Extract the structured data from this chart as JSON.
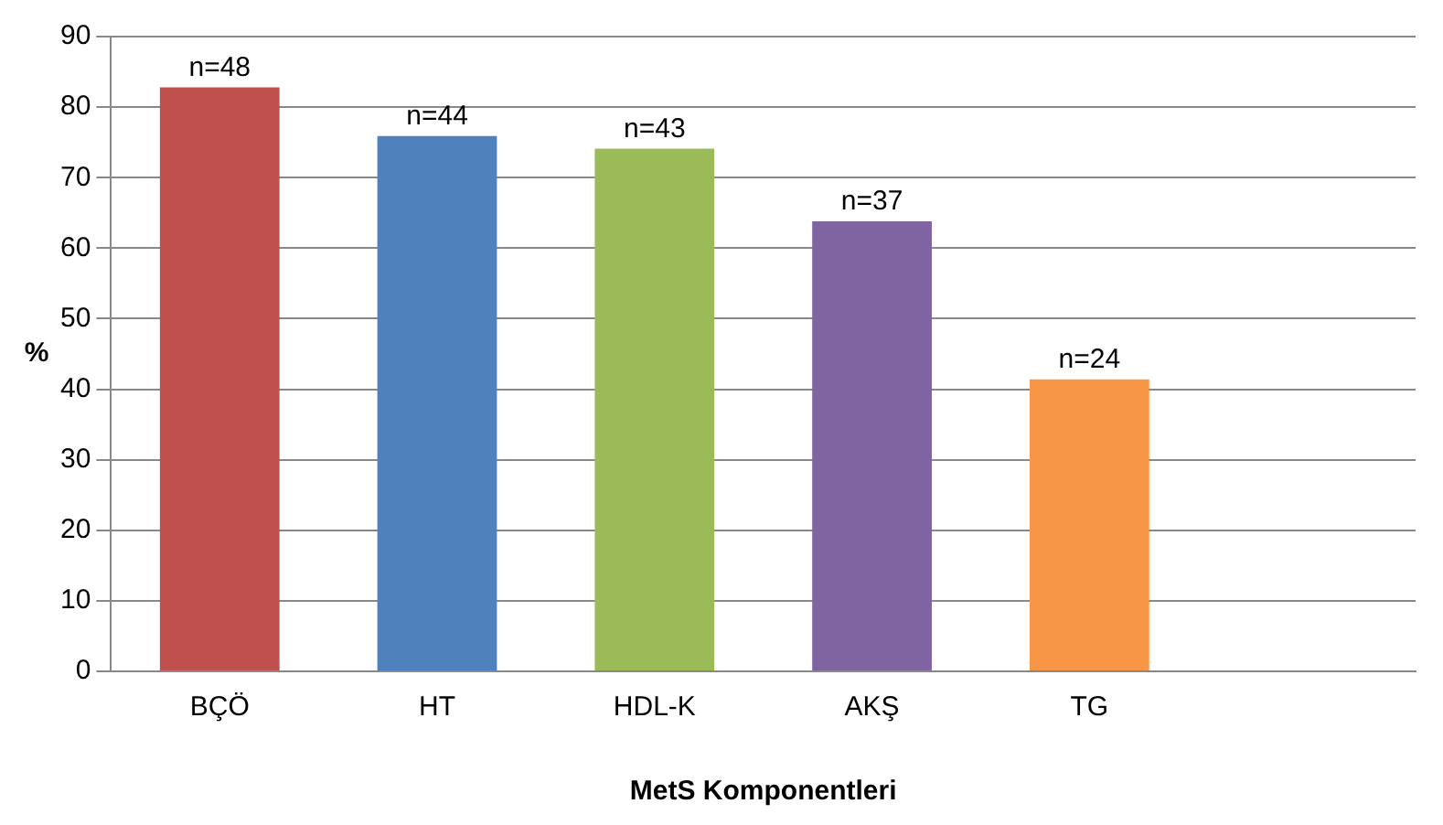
{
  "chart_data": {
    "type": "bar",
    "xlabel": "MetS Komponentleri",
    "ylabel": "%",
    "categories": [
      "BÇÖ",
      "HT",
      "HDL-K",
      "AKŞ",
      "TG",
      null
    ],
    "values": [
      82.8,
      75.9,
      74.1,
      63.8,
      41.4,
      null
    ],
    "colors": [
      "#c0504d",
      "#4f81bd",
      "#9bbb59",
      "#8064a2",
      "#f79646",
      "#888888"
    ],
    "annotations": [
      {
        "text": "n=48",
        "x": "BÇÖ",
        "y": 82.8
      },
      {
        "text": "n=44",
        "x": "HT",
        "y": 75.9
      },
      {
        "text": "n=43",
        "x": "HDL-K",
        "y": 74.1
      },
      {
        "text": "n=37",
        "x": "AKŞ",
        "y": 63.8
      },
      {
        "text": "n=24",
        "x": "TG",
        "y": 41.4
      }
    ],
    "ylim": [
      0,
      90
    ],
    "yticks": [
      0,
      10,
      20,
      30,
      40,
      50,
      60,
      70,
      80,
      90
    ],
    "grid": "y",
    "legend": false
  }
}
